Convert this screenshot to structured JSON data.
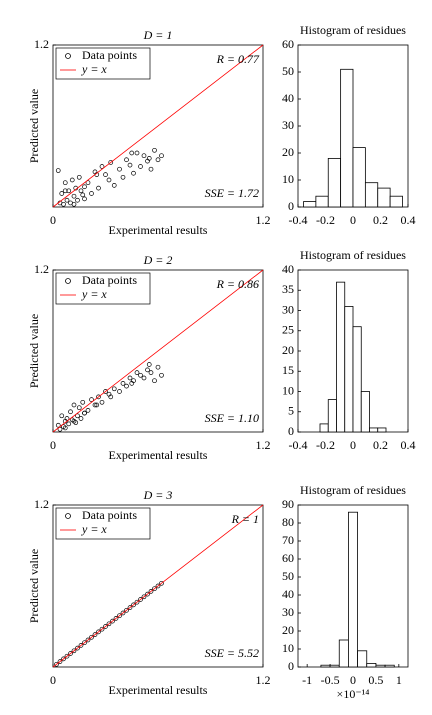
{
  "chart_data": [
    {
      "type": "scatter",
      "title": "D = 1",
      "xlabel": "Experimental results",
      "ylabel": "Predicted value",
      "xlim": [
        0,
        1.2
      ],
      "ylim": [
        0,
        1.2
      ],
      "xticks": [
        0,
        1.2
      ],
      "yticks": [
        1.2
      ],
      "legend": "upper left",
      "annotations": [
        "R = 0.77",
        "SSE = 1.72"
      ],
      "series": [
        {
          "name": "Data points",
          "color": "#000000",
          "x": [
            0.03,
            0.04,
            0.05,
            0.06,
            0.07,
            0.08,
            0.09,
            0.1,
            0.11,
            0.12,
            0.13,
            0.14,
            0.15,
            0.16,
            0.17,
            0.18,
            0.2,
            0.22,
            0.24,
            0.26,
            0.28,
            0.3,
            0.32,
            0.35,
            0.38,
            0.4,
            0.42,
            0.44,
            0.46,
            0.48,
            0.5,
            0.52,
            0.54,
            0.56,
            0.58,
            0.6,
            0.62,
            0.07,
            0.12,
            0.18,
            0.25,
            0.33,
            0.45,
            0.55
          ],
          "values": [
            0.27,
            0.03,
            0.1,
            0.02,
            0.18,
            0.05,
            0.12,
            0.03,
            0.2,
            0.08,
            0.14,
            0.05,
            0.22,
            0.12,
            0.09,
            0.15,
            0.18,
            0.1,
            0.26,
            0.14,
            0.3,
            0.24,
            0.2,
            0.16,
            0.28,
            0.22,
            0.35,
            0.31,
            0.25,
            0.4,
            0.3,
            0.38,
            0.34,
            0.28,
            0.42,
            0.35,
            0.38,
            0.12,
            0.02,
            0.06,
            0.24,
            0.33,
            0.4,
            0.36
          ]
        },
        {
          "name": "y = x",
          "color": "#ff0000",
          "x": [
            0,
            1.2
          ],
          "values": [
            0,
            1.2
          ]
        }
      ]
    },
    {
      "type": "histogram",
      "title": "Histogram of residues",
      "color": "#ffffff",
      "bins": [
        -0.36,
        -0.27,
        -0.18,
        -0.09,
        0,
        0.09,
        0.18,
        0.27,
        0.36
      ],
      "values": [
        2,
        4,
        18,
        51,
        22,
        9,
        7,
        4
      ],
      "xlim": [
        -0.4,
        0.4
      ],
      "xticks": [
        -0.4,
        -0.2,
        0,
        0.2,
        0.4
      ],
      "ylim": [
        0,
        60
      ],
      "yticks": [
        0,
        10,
        20,
        30,
        40,
        50,
        60
      ]
    },
    {
      "type": "scatter",
      "title": "D = 2",
      "xlabel": "Experimental results",
      "ylabel": "Predicted value",
      "xlim": [
        0,
        1.2
      ],
      "ylim": [
        0,
        1.2
      ],
      "xticks": [
        0,
        1.2
      ],
      "yticks": [
        1.2
      ],
      "legend": "upper left",
      "annotations": [
        "R = 0.86",
        "SSE = 1.10"
      ],
      "series": [
        {
          "name": "Data points",
          "color": "#000000",
          "x": [
            0.03,
            0.04,
            0.05,
            0.06,
            0.07,
            0.08,
            0.09,
            0.1,
            0.11,
            0.12,
            0.13,
            0.14,
            0.15,
            0.16,
            0.17,
            0.18,
            0.2,
            0.22,
            0.24,
            0.26,
            0.28,
            0.3,
            0.32,
            0.35,
            0.38,
            0.4,
            0.42,
            0.44,
            0.46,
            0.48,
            0.5,
            0.52,
            0.54,
            0.56,
            0.58,
            0.6,
            0.62,
            0.07,
            0.12,
            0.18,
            0.25,
            0.33,
            0.45,
            0.55
          ],
          "values": [
            0.05,
            0.02,
            0.12,
            0.04,
            0.08,
            0.1,
            0.06,
            0.15,
            0.09,
            0.2,
            0.07,
            0.12,
            0.18,
            0.1,
            0.22,
            0.14,
            0.16,
            0.24,
            0.2,
            0.26,
            0.22,
            0.3,
            0.28,
            0.32,
            0.3,
            0.36,
            0.34,
            0.4,
            0.38,
            0.44,
            0.42,
            0.4,
            0.46,
            0.44,
            0.38,
            0.48,
            0.42,
            0.03,
            0.08,
            0.14,
            0.2,
            0.26,
            0.36,
            0.5
          ]
        },
        {
          "name": "y = x",
          "color": "#ff0000",
          "x": [
            0,
            1.2
          ],
          "values": [
            0,
            1.2
          ]
        }
      ]
    },
    {
      "type": "histogram",
      "title": "Histogram of residues",
      "color": "#ffffff",
      "bins": [
        -0.24,
        -0.18,
        -0.12,
        -0.06,
        0,
        0.06,
        0.12,
        0.18,
        0.24
      ],
      "values": [
        2,
        8,
        37,
        31,
        26,
        10,
        1,
        1
      ],
      "xlim": [
        -0.4,
        0.4
      ],
      "xticks": [
        -0.4,
        -0.2,
        0,
        0.2,
        0.4
      ],
      "ylim": [
        0,
        40
      ],
      "yticks": [
        0,
        5,
        10,
        15,
        20,
        25,
        30,
        35,
        40
      ]
    },
    {
      "type": "scatter",
      "title": "D = 3",
      "xlabel": "Experimental results",
      "ylabel": "Predicted value",
      "xlim": [
        0,
        1.2
      ],
      "ylim": [
        0,
        1.2
      ],
      "xticks": [
        0,
        1.2
      ],
      "yticks": [
        1.2
      ],
      "legend": "upper left",
      "annotations": [
        "R = 1",
        "SSE = 5.52"
      ],
      "series": [
        {
          "name": "Data points",
          "color": "#000000",
          "x": [
            0.02,
            0.04,
            0.06,
            0.08,
            0.1,
            0.12,
            0.14,
            0.16,
            0.18,
            0.2,
            0.22,
            0.24,
            0.26,
            0.28,
            0.3,
            0.32,
            0.34,
            0.36,
            0.38,
            0.4,
            0.42,
            0.44,
            0.46,
            0.48,
            0.5,
            0.52,
            0.54,
            0.56,
            0.58,
            0.6,
            0.62
          ],
          "values": [
            0.02,
            0.04,
            0.06,
            0.08,
            0.1,
            0.12,
            0.14,
            0.16,
            0.18,
            0.2,
            0.22,
            0.24,
            0.26,
            0.28,
            0.3,
            0.32,
            0.34,
            0.36,
            0.38,
            0.4,
            0.42,
            0.44,
            0.46,
            0.48,
            0.5,
            0.52,
            0.54,
            0.56,
            0.58,
            0.6,
            0.62
          ]
        },
        {
          "name": "y = x",
          "color": "#ff0000",
          "x": [
            0,
            1.2
          ],
          "values": [
            0,
            1.2
          ]
        }
      ]
    },
    {
      "type": "histogram",
      "title": "Histogram of residues",
      "color": "#ffffff",
      "offset_text": "×10⁻¹⁴",
      "bins": [
        -0.7,
        -0.5,
        -0.3,
        -0.1,
        0.1,
        0.3,
        0.5,
        0.7,
        0.9
      ],
      "values": [
        1,
        1,
        15,
        86,
        9,
        2,
        1,
        1
      ],
      "xlim": [
        -1.2,
        1.2
      ],
      "xticks": [
        -1,
        -0.5,
        0,
        0.5,
        1
      ],
      "ylim": [
        0,
        90
      ],
      "yticks": [
        0,
        10,
        20,
        30,
        40,
        50,
        60,
        70,
        80,
        90
      ]
    }
  ]
}
